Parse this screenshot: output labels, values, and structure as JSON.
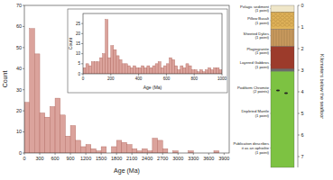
{
  "chart_data": [
    {
      "type": "histogram",
      "x_label": "Age (Ma)",
      "y_label": "Count",
      "color": "#dba39c",
      "bins": [
        0,
        100,
        200,
        300,
        400,
        500,
        600,
        700,
        800,
        900,
        1000,
        1100,
        1200,
        1300,
        1400,
        1500,
        1600,
        1700,
        1800,
        1900,
        2000,
        2100,
        2200,
        2300,
        2400,
        2500,
        2600,
        2700,
        2800,
        2900,
        3000,
        3100,
        3200,
        3300,
        3400,
        3500,
        3600,
        3700,
        3800,
        3900
      ],
      "counts": [
        24,
        59,
        47,
        19,
        17,
        22,
        26,
        18,
        8,
        13,
        6,
        3,
        4,
        2,
        1,
        3,
        0,
        3,
        6,
        5,
        4,
        2,
        1,
        2,
        1,
        7,
        6,
        2,
        0,
        1,
        0,
        0,
        1,
        0,
        0,
        0,
        0,
        1,
        0
      ],
      "xlim": [
        0,
        4000
      ],
      "ylim": [
        0,
        70
      ],
      "xticks": [
        0,
        300,
        600,
        900,
        1200,
        1500,
        1800,
        2100,
        2400,
        2700,
        3000,
        3300,
        3600,
        3900
      ],
      "yticks": [
        0,
        10,
        20,
        30,
        40,
        50,
        60,
        70
      ]
    },
    {
      "type": "histogram",
      "x_label": "Age (Ma)",
      "y_label": "Count",
      "color": "#dba39c",
      "bins": [
        0,
        20,
        40,
        60,
        80,
        100,
        120,
        140,
        160,
        180,
        200,
        220,
        240,
        260,
        280,
        300,
        320,
        340,
        360,
        380,
        400,
        420,
        440,
        460,
        480,
        500,
        520,
        540,
        560,
        580,
        600,
        620,
        640,
        660,
        680,
        700,
        720,
        740,
        760,
        780,
        800,
        820,
        840,
        860,
        880,
        900,
        920,
        940,
        960,
        980,
        1000
      ],
      "counts": [
        3,
        5,
        4,
        6,
        6,
        6,
        8,
        10,
        27,
        8,
        14,
        12,
        9,
        7,
        5,
        5,
        4,
        3,
        4,
        3,
        3,
        4,
        3,
        4,
        3,
        4,
        5,
        6,
        3,
        4,
        5,
        8,
        7,
        4,
        2,
        4,
        3,
        5,
        4,
        2,
        2,
        1,
        2,
        1,
        2,
        3,
        2,
        3,
        3,
        2
      ],
      "xlim": [
        0,
        1000
      ],
      "ylim": [
        0,
        30
      ],
      "xticks": [
        0,
        200,
        400,
        600,
        800,
        1000
      ],
      "yticks": [
        0,
        5,
        10,
        15,
        20,
        25
      ]
    }
  ],
  "diagram": {
    "axis_label": "Kilometers below the seafloor",
    "ylim": [
      0,
      7.5
    ],
    "yticks": [
      0,
      1,
      2,
      3,
      4,
      5,
      6,
      7
    ],
    "layers": [
      {
        "top": 0,
        "bottom": 0.3,
        "color": "#efe6c8"
      },
      {
        "top": 0.3,
        "bottom": 1.1,
        "color": "#e1b45a"
      },
      {
        "top": 1.1,
        "bottom": 1.9,
        "color": "#c99a5e"
      },
      {
        "top": 1.9,
        "bottom": 2.95,
        "color": "#9c3b2b"
      },
      {
        "top": 2.95,
        "bottom": 3.05,
        "color": "#6b6b6b"
      },
      {
        "top": 3.05,
        "bottom": 7.5,
        "color": "#7dc242"
      }
    ],
    "labels": [
      {
        "lines": [
          "Pelagic sediment",
          "(1 point)"
        ],
        "depth": 0.15
      },
      {
        "lines": [
          "Pillow Basalt",
          "(1 point)"
        ],
        "depth": 0.7
      },
      {
        "lines": [
          "Sheeted Dykes",
          "(1 point)"
        ],
        "depth": 1.4
      },
      {
        "lines": [
          "Plagiogranite",
          "(1 point)"
        ],
        "depth": 2.1
      },
      {
        "lines": [
          "Layered Gabbros",
          "(1 point)"
        ],
        "depth": 2.75
      },
      {
        "lines": [
          "Podiform Chromite",
          "(2 points)"
        ],
        "depth": 3.9
      },
      {
        "lines": [
          "Depleted Mantle",
          "(1 point)"
        ],
        "depth": 5.0
      },
      {
        "lines": [
          "Publication describes",
          "it as an ophiolite",
          "(1 point)"
        ],
        "depth": 6.6
      }
    ]
  }
}
